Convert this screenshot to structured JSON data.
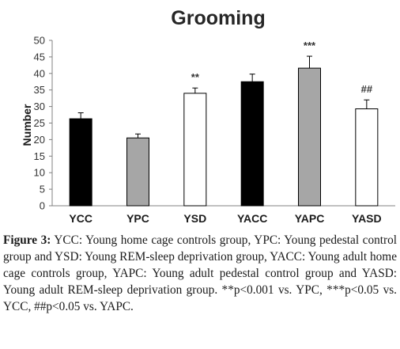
{
  "chart_data": {
    "type": "bar",
    "title": "Grooming",
    "ylabel": "Number",
    "xlabel": "",
    "ylim": [
      0,
      50
    ],
    "yticks": [
      0,
      5,
      10,
      15,
      20,
      25,
      30,
      35,
      40,
      45,
      50
    ],
    "categories": [
      "YCC",
      "YPC",
      "YSD",
      "YACC",
      "YAPC",
      "YASD"
    ],
    "values": [
      26.3,
      20.5,
      34.0,
      37.5,
      41.6,
      29.3
    ],
    "errors": [
      1.8,
      1.2,
      1.6,
      2.3,
      3.6,
      2.7
    ],
    "bar_colors": [
      "#000000",
      "#a6a6a6",
      "#ffffff",
      "#000000",
      "#a6a6a6",
      "#ffffff"
    ],
    "significance": [
      "",
      "",
      "**",
      "",
      "***",
      "##"
    ],
    "grid": false,
    "legend": "none"
  },
  "caption": {
    "label": "Figure 3:",
    "text": " YCC: Young home cage controls group, YPC: Young pedestal control group and YSD: Young REM-sleep deprivation group, YACC: Young adult home cage controls group, YAPC: Young adult pedestal control group and YASD: Young adult REM-sleep deprivation group. **p<0.001 vs. YPC, ***p<0.05 vs. YCC, ##p<0.05 vs. YAPC."
  }
}
